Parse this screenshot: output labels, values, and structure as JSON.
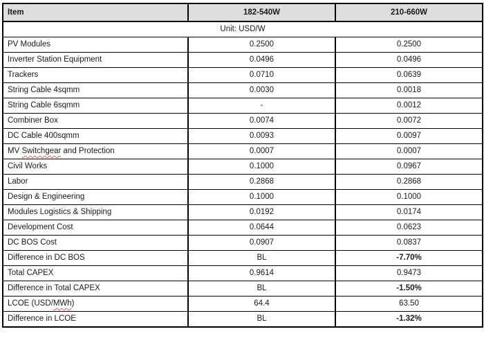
{
  "table": {
    "header": {
      "col_item": "Item",
      "col_a": "182-540W",
      "col_b": "210-660W"
    },
    "unit_label": "Unit: USD/W",
    "rows": [
      {
        "item": "PV Modules",
        "a": "0.2500",
        "b": "0.2500"
      },
      {
        "item": "Inverter Station Equipment",
        "a": "0.0496",
        "b": "0.0496"
      },
      {
        "item": "Trackers",
        "a": "0.0710",
        "b": "0.0639"
      },
      {
        "item": "String Cable 4sqmm",
        "a": "0.0030",
        "b": "0.0018"
      },
      {
        "item": "String Cable 6sqmm",
        "a": "-",
        "b": "0.0012"
      },
      {
        "item": "Combiner Box",
        "a": "0.0074",
        "b": "0.0072"
      },
      {
        "item": "DC Cable 400sqmm",
        "a": "0.0093",
        "b": "0.0097"
      },
      {
        "item": "MV Switchgear and Protection",
        "a": "0.0007",
        "b": "0.0007",
        "spell_word": "Switchgear"
      },
      {
        "item": "Civil Works",
        "a": "0.1000",
        "b": "0.0967"
      },
      {
        "item": "Labor",
        "a": "0.2868",
        "b": "0.2868"
      },
      {
        "item": "Design & Engineering",
        "a": "0.1000",
        "b": "0.1000"
      },
      {
        "item": "Modules Logistics & Shipping",
        "a": "0.0192",
        "b": "0.0174"
      },
      {
        "item": "Development Cost",
        "a": "0.0644",
        "b": "0.0623"
      },
      {
        "item": "DC BOS Cost",
        "a": "0.0907",
        "b": "0.0837"
      },
      {
        "item": "Difference in DC BOS",
        "a": "BL",
        "b": "-7.70%",
        "b_bold": true
      },
      {
        "item": "Total CAPEX",
        "a": "0.9614",
        "b": "0.9473"
      },
      {
        "item": "Difference in Total CAPEX",
        "a": "BL",
        "b": "-1.50%",
        "b_bold": true
      },
      {
        "item": "LCOE (USD/MWh)",
        "a": "64.4",
        "b": "63.50",
        "spell_word": "MWh"
      },
      {
        "item": "Difference in LCOE",
        "a": "BL",
        "b": "-1.32%",
        "b_bold": true
      }
    ],
    "colors": {
      "header_bg": "#dedede",
      "border": "#000000",
      "spellcheck_underline": "#e05c4f"
    }
  }
}
